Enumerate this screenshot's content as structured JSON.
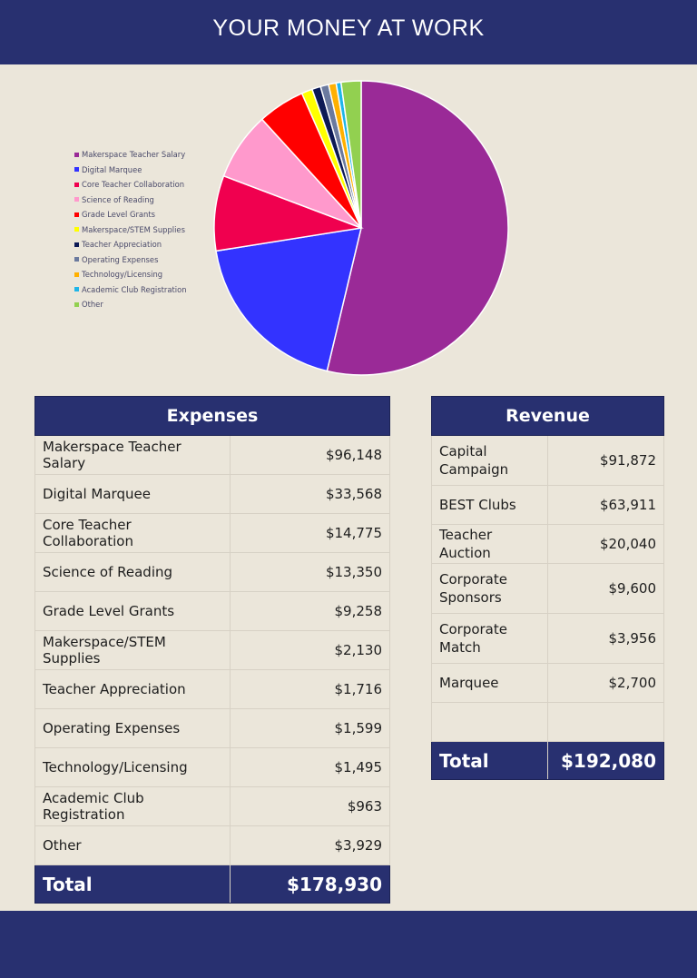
{
  "header": {
    "title": "YOUR MONEY AT WORK"
  },
  "chart_data": {
    "type": "pie",
    "categories": [
      "Makerspace Teacher Salary",
      "Digital Marquee",
      "Core Teacher Collaboration",
      "Science of Reading",
      "Grade Level Grants",
      "Makerspace/STEM Supplies",
      "Teacher Appreciation",
      "Operating Expenses",
      "Technology/Licensing",
      "Academic Club Registration",
      "Other"
    ],
    "values": [
      96148,
      33568,
      14775,
      13350,
      9258,
      2130,
      1716,
      1599,
      1495,
      963,
      3929
    ],
    "colors": [
      "#9a2a97",
      "#3333ff",
      "#f0004f",
      "#ff99cc",
      "#ff0000",
      "#ffff00",
      "#0d1a55",
      "#6b7a9e",
      "#ffb000",
      "#1fb5e8",
      "#92d050"
    ],
    "legend": "left"
  },
  "expenses": {
    "title": "Expenses",
    "rows": [
      {
        "label": "Makerspace Teacher Salary",
        "value": "$96,148"
      },
      {
        "label": "Digital Marquee",
        "value": "$33,568"
      },
      {
        "label": "Core Teacher Collaboration",
        "value": "$14,775"
      },
      {
        "label": "Science of Reading",
        "value": "$13,350"
      },
      {
        "label": "Grade Level Grants",
        "value": "$9,258"
      },
      {
        "label": "Makerspace/STEM Supplies",
        "value": "$2,130"
      },
      {
        "label": "Teacher Appreciation",
        "value": "$1,716"
      },
      {
        "label": "Operating Expenses",
        "value": "$1,599"
      },
      {
        "label": "Technology/Licensing",
        "value": "$1,495"
      },
      {
        "label": "Academic Club Registration",
        "value": "$963"
      },
      {
        "label": "Other",
        "value": "$3,929"
      }
    ],
    "total_label": "Total",
    "total_value": "$178,930"
  },
  "revenue": {
    "title": "Revenue",
    "rows": [
      {
        "label": "Capital Campaign",
        "value": "$91,872"
      },
      {
        "label": "BEST Clubs",
        "value": "$63,911"
      },
      {
        "label": "Teacher Auction",
        "value": "$20,040"
      },
      {
        "label": "Corporate Sponsors",
        "value": "$9,600"
      },
      {
        "label": "Corporate Match",
        "value": "$3,956"
      },
      {
        "label": "Marquee",
        "value": "$2,700"
      },
      {
        "label": "",
        "value": ""
      }
    ],
    "total_label": "Total",
    "total_value": "$192,080"
  }
}
